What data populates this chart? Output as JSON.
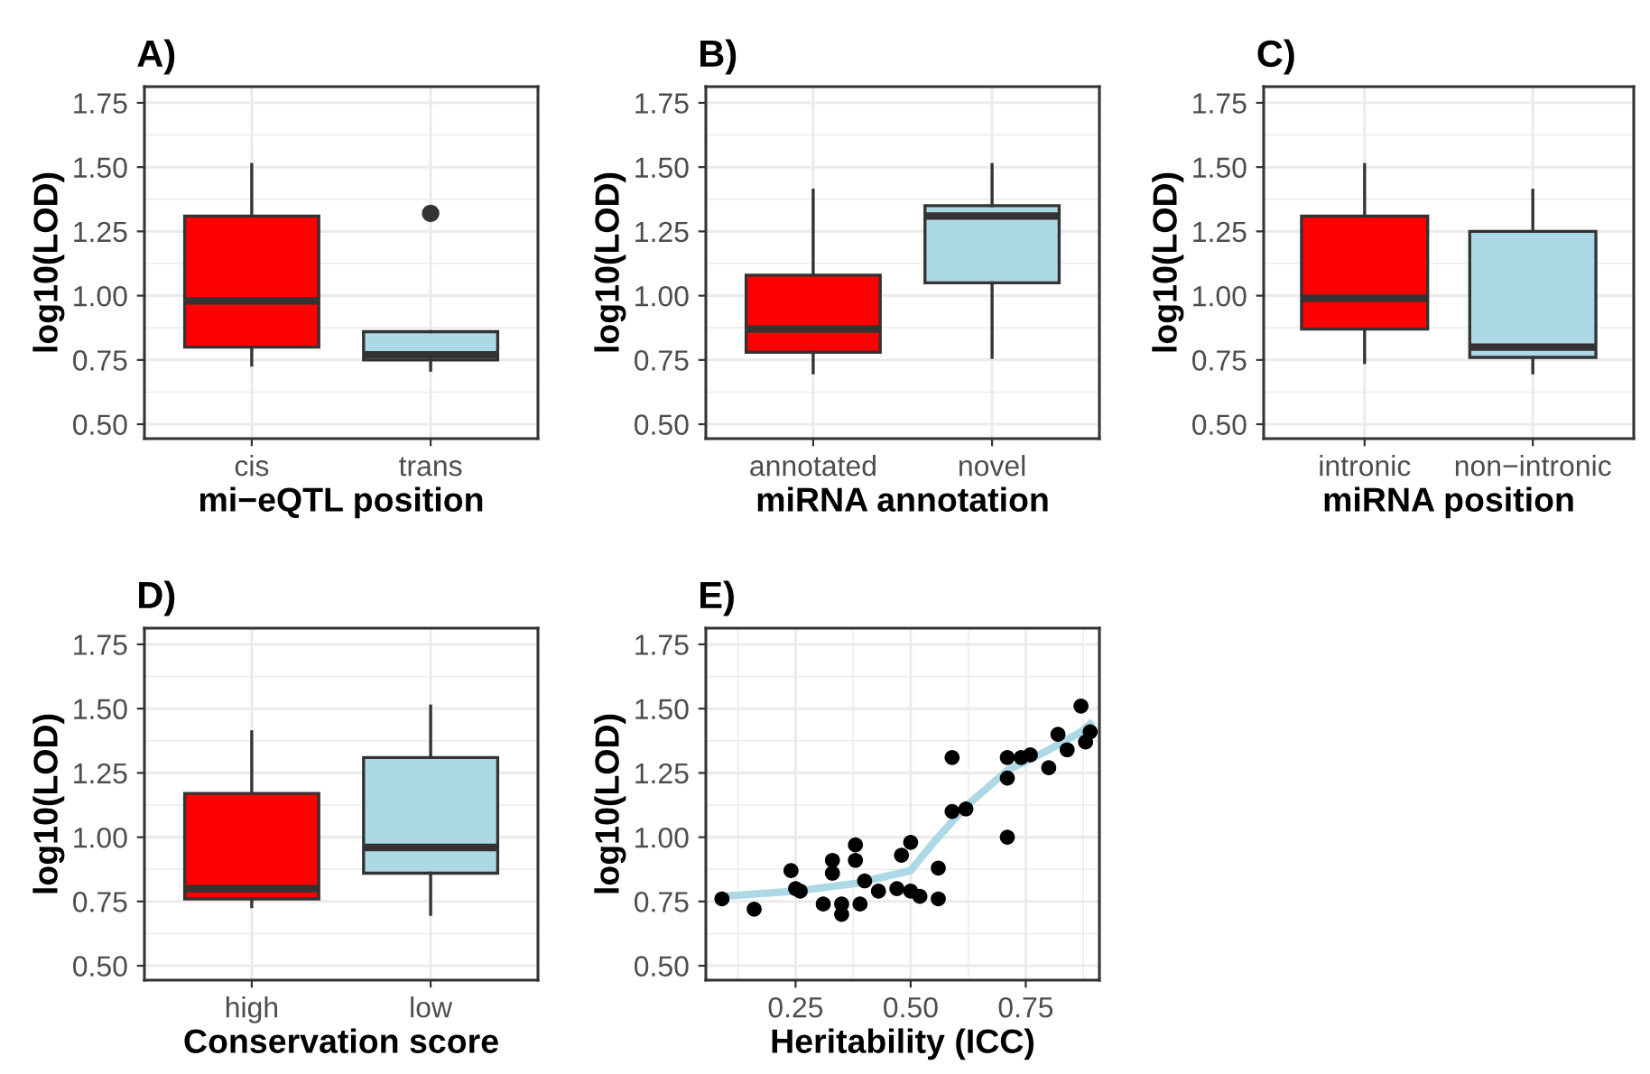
{
  "chart_data": [
    {
      "type": "box",
      "title": "A)",
      "xlabel": "mi−eQTL position",
      "ylabel": "log10(LOD)",
      "categories": [
        "cis",
        "trans"
      ],
      "colors": [
        "#ff0000",
        "#add8e6"
      ],
      "boxes": [
        {
          "low": 0.73,
          "q1": 0.8,
          "median": 0.98,
          "q3": 1.31,
          "high": 1.51
        },
        {
          "low": 0.71,
          "q1": 0.75,
          "median": 0.77,
          "q3": 0.86,
          "high": 0.86,
          "outliers": [
            1.32
          ]
        }
      ],
      "ylim": [
        0.444,
        1.813
      ],
      "yticks": [
        {
          "value": 0.5,
          "label": "0.50"
        },
        0.75,
        {
          "value": 1.0,
          "label": "1.00"
        },
        1.25,
        {
          "value": 1.5,
          "label": "1.50"
        },
        1.75
      ],
      "grid": true
    },
    {
      "type": "box",
      "title": "B)",
      "xlabel": "miRNA annotation",
      "ylabel": "log10(LOD)",
      "categories": [
        "annotated",
        "novel"
      ],
      "colors": [
        "#ff0000",
        "#add8e6"
      ],
      "boxes": [
        {
          "low": 0.7,
          "q1": 0.78,
          "median": 0.87,
          "q3": 1.08,
          "high": 1.41
        },
        {
          "low": 0.76,
          "q1": 1.05,
          "median": 1.31,
          "q3": 1.35,
          "high": 1.51
        }
      ],
      "ylim": [
        0.444,
        1.813
      ],
      "yticks": [
        {
          "value": 0.5,
          "label": "0.50"
        },
        0.75,
        {
          "value": 1.0,
          "label": "1.00"
        },
        1.25,
        {
          "value": 1.5,
          "label": "1.50"
        },
        1.75
      ],
      "grid": true
    },
    {
      "type": "box",
      "title": "C)",
      "xlabel": "miRNA position",
      "ylabel": "log10(LOD)",
      "categories": [
        "intronic",
        "non−intronic"
      ],
      "colors": [
        "#ff0000",
        "#add8e6"
      ],
      "boxes": [
        {
          "low": 0.74,
          "q1": 0.87,
          "median": 0.99,
          "q3": 1.31,
          "high": 1.51
        },
        {
          "low": 0.7,
          "q1": 0.76,
          "median": 0.8,
          "q3": 1.25,
          "high": 1.41
        }
      ],
      "ylim": [
        0.444,
        1.813
      ],
      "yticks": [
        {
          "value": 0.5,
          "label": "0.50"
        },
        0.75,
        {
          "value": 1.0,
          "label": "1.00"
        },
        1.25,
        {
          "value": 1.5,
          "label": "1.50"
        },
        1.75
      ],
      "grid": true
    },
    {
      "type": "box",
      "title": "D)",
      "xlabel": "Conservation score",
      "ylabel": "log10(LOD)",
      "categories": [
        "high",
        "low"
      ],
      "colors": [
        "#ff0000",
        "#add8e6"
      ],
      "boxes": [
        {
          "low": 0.73,
          "q1": 0.76,
          "median": 0.8,
          "q3": 1.17,
          "high": 1.41
        },
        {
          "low": 0.7,
          "q1": 0.86,
          "median": 0.96,
          "q3": 1.31,
          "high": 1.51
        }
      ],
      "ylim": [
        0.444,
        1.813
      ],
      "yticks": [
        {
          "value": 0.5,
          "label": "0.50"
        },
        0.75,
        {
          "value": 1.0,
          "label": "1.00"
        },
        1.25,
        {
          "value": 1.5,
          "label": "1.50"
        },
        1.75
      ],
      "grid": true
    },
    {
      "type": "scatter",
      "title": "E)",
      "xlabel": "Heritability (ICC)",
      "ylabel": "log10(LOD)",
      "grid": true,
      "xlim": [
        0.055,
        0.91
      ],
      "xticks": [
        0.25,
        {
          "value": 0.5,
          "label": "0.50"
        },
        0.75
      ],
      "ylim": [
        0.444,
        1.813
      ],
      "yticks": [
        {
          "value": 0.5,
          "label": "0.50"
        },
        0.75,
        {
          "value": 1.0,
          "label": "1.00"
        },
        1.25,
        {
          "value": 1.5,
          "label": "1.50"
        },
        1.75
      ],
      "series": [
        {
          "type": "scatter",
          "marker": "circle",
          "color": "#000000",
          "x": [
            0.09,
            0.16,
            0.24,
            0.25,
            0.26,
            0.31,
            0.33,
            0.33,
            0.35,
            0.35,
            0.38,
            0.38,
            0.39,
            0.4,
            0.43,
            0.47,
            0.48,
            0.5,
            0.5,
            0.52,
            0.56,
            0.56,
            0.59,
            0.59,
            0.62,
            0.71,
            0.71,
            0.71,
            0.74,
            0.76,
            0.8,
            0.82,
            0.84,
            0.87,
            0.88,
            0.89
          ],
          "values": [
            0.76,
            0.72,
            0.87,
            0.8,
            0.79,
            0.74,
            0.91,
            0.86,
            0.74,
            0.7,
            0.97,
            0.91,
            0.74,
            0.83,
            0.79,
            0.8,
            0.93,
            0.98,
            0.79,
            0.77,
            0.88,
            0.76,
            1.1,
            1.31,
            1.11,
            1.31,
            1.23,
            1.0,
            1.31,
            1.32,
            1.27,
            1.4,
            1.34,
            1.51,
            1.37,
            1.41
          ]
        },
        {
          "type": "line",
          "color": "#add8e6",
          "x": [
            0.09,
            0.25,
            0.38,
            0.5,
            0.55,
            0.62,
            0.71,
            0.79,
            0.87,
            0.89
          ],
          "values": [
            0.77,
            0.79,
            0.82,
            0.87,
            0.98,
            1.12,
            1.26,
            1.33,
            1.41,
            1.44
          ]
        }
      ]
    }
  ]
}
